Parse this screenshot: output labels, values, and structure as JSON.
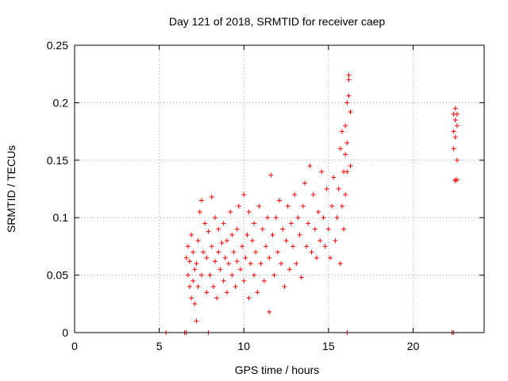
{
  "chart_data": {
    "type": "scatter",
    "title": "Day 121 of 2018, SRMTID for receiver caep",
    "xlabel": "GPS time / hours",
    "ylabel": "SRMTID / TECUs",
    "xlim": [
      0,
      24.2
    ],
    "ylim": [
      0,
      0.25
    ],
    "xticks": [
      0,
      5,
      10,
      15,
      20
    ],
    "xtick_labels": [
      "0",
      "5",
      "10",
      "15",
      "20"
    ],
    "yticks": [
      0,
      0.05,
      0.1,
      0.15,
      0.2,
      0.25
    ],
    "ytick_labels": [
      "0",
      "0.05",
      "0.1",
      "0.15",
      "0.2",
      "0.25"
    ],
    "grid": true,
    "marker": "+",
    "color": "#ff0000",
    "series": [
      {
        "name": "SRMTID",
        "points": [
          [
            5.4,
            0.0
          ],
          [
            6.5,
            0.0
          ],
          [
            6.6,
            0.0
          ],
          [
            7.9,
            0.0
          ],
          [
            16.1,
            0.0
          ],
          [
            22.3,
            0.0
          ],
          [
            22.4,
            0.0
          ],
          [
            6.6,
            0.065
          ],
          [
            6.7,
            0.05
          ],
          [
            6.7,
            0.075
          ],
          [
            6.8,
            0.04
          ],
          [
            6.8,
            0.062
          ],
          [
            6.9,
            0.03
          ],
          [
            6.9,
            0.085
          ],
          [
            7.0,
            0.045
          ],
          [
            7.0,
            0.07
          ],
          [
            7.1,
            0.025
          ],
          [
            7.1,
            0.055
          ],
          [
            7.2,
            0.01
          ],
          [
            7.2,
            0.06
          ],
          [
            7.3,
            0.04
          ],
          [
            7.3,
            0.08
          ],
          [
            7.4,
            0.105
          ],
          [
            7.5,
            0.115
          ],
          [
            7.5,
            0.05
          ],
          [
            7.6,
            0.07
          ],
          [
            7.7,
            0.095
          ],
          [
            7.8,
            0.035
          ],
          [
            7.8,
            0.065
          ],
          [
            7.9,
            0.088
          ],
          [
            8.0,
            0.05
          ],
          [
            8.1,
            0.075
          ],
          [
            8.1,
            0.118
          ],
          [
            8.2,
            0.04
          ],
          [
            8.3,
            0.062
          ],
          [
            8.3,
            0.1
          ],
          [
            8.4,
            0.03
          ],
          [
            8.5,
            0.07
          ],
          [
            8.5,
            0.09
          ],
          [
            8.6,
            0.055
          ],
          [
            8.7,
            0.078
          ],
          [
            8.8,
            0.045
          ],
          [
            8.8,
            0.095
          ],
          [
            8.9,
            0.065
          ],
          [
            9.0,
            0.035
          ],
          [
            9.0,
            0.08
          ],
          [
            9.1,
            0.06
          ],
          [
            9.2,
            0.105
          ],
          [
            9.3,
            0.05
          ],
          [
            9.3,
            0.085
          ],
          [
            9.4,
            0.07
          ],
          [
            9.5,
            0.04
          ],
          [
            9.6,
            0.09
          ],
          [
            9.6,
            0.062
          ],
          [
            9.7,
            0.11
          ],
          [
            9.8,
            0.055
          ],
          [
            9.9,
            0.075
          ],
          [
            10.0,
            0.045
          ],
          [
            10.0,
            0.12
          ],
          [
            10.1,
            0.065
          ],
          [
            10.2,
            0.085
          ],
          [
            10.3,
            0.03
          ],
          [
            10.3,
            0.105
          ],
          [
            10.4,
            0.06
          ],
          [
            10.5,
            0.08
          ],
          [
            10.6,
            0.05
          ],
          [
            10.6,
            0.095
          ],
          [
            10.7,
            0.07
          ],
          [
            10.8,
            0.035
          ],
          [
            10.9,
            0.11
          ],
          [
            11.0,
            0.06
          ],
          [
            11.1,
            0.09
          ],
          [
            11.2,
            0.045
          ],
          [
            11.3,
            0.075
          ],
          [
            11.4,
            0.1
          ],
          [
            11.5,
            0.018
          ],
          [
            11.5,
            0.065
          ],
          [
            11.6,
            0.137
          ],
          [
            11.7,
            0.085
          ],
          [
            11.8,
            0.05
          ],
          [
            11.9,
            0.1
          ],
          [
            12.0,
            0.07
          ],
          [
            12.1,
            0.115
          ],
          [
            12.2,
            0.06
          ],
          [
            12.3,
            0.09
          ],
          [
            12.4,
            0.04
          ],
          [
            12.5,
            0.08
          ],
          [
            12.6,
            0.11
          ],
          [
            12.7,
            0.055
          ],
          [
            12.8,
            0.095
          ],
          [
            12.9,
            0.075
          ],
          [
            13.0,
            0.12
          ],
          [
            13.1,
            0.06
          ],
          [
            13.2,
            0.1
          ],
          [
            13.3,
            0.085
          ],
          [
            13.4,
            0.048
          ],
          [
            13.5,
            0.11
          ],
          [
            13.6,
            0.13
          ],
          [
            13.7,
            0.075
          ],
          [
            13.8,
            0.095
          ],
          [
            13.9,
            0.145
          ],
          [
            14.0,
            0.07
          ],
          [
            14.1,
            0.12
          ],
          [
            14.2,
            0.09
          ],
          [
            14.3,
            0.065
          ],
          [
            14.4,
            0.105
          ],
          [
            14.5,
            0.08
          ],
          [
            14.6,
            0.14
          ],
          [
            14.7,
            0.1
          ],
          [
            14.8,
            0.075
          ],
          [
            14.9,
            0.125
          ],
          [
            15.0,
            0.09
          ],
          [
            15.1,
            0.065
          ],
          [
            15.2,
            0.11
          ],
          [
            15.3,
            0.135
          ],
          [
            15.4,
            0.08
          ],
          [
            15.5,
            0.1
          ],
          [
            15.6,
            0.125
          ],
          [
            15.7,
            0.06
          ],
          [
            15.7,
            0.16
          ],
          [
            15.8,
            0.11
          ],
          [
            15.8,
            0.175
          ],
          [
            15.9,
            0.09
          ],
          [
            15.9,
            0.14
          ],
          [
            16.0,
            0.18
          ],
          [
            16.0,
            0.155
          ],
          [
            16.0,
            0.12
          ],
          [
            16.1,
            0.2
          ],
          [
            16.1,
            0.165
          ],
          [
            16.1,
            0.14
          ],
          [
            16.2,
            0.224
          ],
          [
            16.2,
            0.22
          ],
          [
            16.2,
            0.206
          ],
          [
            16.3,
            0.192
          ],
          [
            16.3,
            0.145
          ],
          [
            22.4,
            0.19
          ],
          [
            22.4,
            0.175
          ],
          [
            22.4,
            0.16
          ],
          [
            22.5,
            0.195
          ],
          [
            22.5,
            0.185
          ],
          [
            22.5,
            0.17
          ],
          [
            22.5,
            0.132
          ],
          [
            22.5,
            0.133
          ],
          [
            22.6,
            0.19
          ],
          [
            22.6,
            0.18
          ],
          [
            22.6,
            0.15
          ],
          [
            22.6,
            0.133
          ]
        ]
      }
    ]
  }
}
